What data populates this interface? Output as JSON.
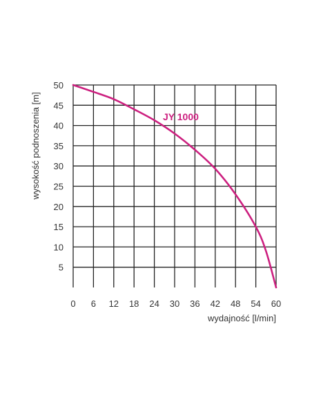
{
  "chart_data": {
    "type": "line",
    "xlabel": "wydajność [l/min]",
    "ylabel": "wysokość podnoszenia [m]",
    "xlim": [
      0,
      60
    ],
    "ylim": [
      0,
      50
    ],
    "x_ticks": [
      0,
      6,
      12,
      18,
      24,
      30,
      36,
      42,
      48,
      54,
      60
    ],
    "y_ticks": [
      5,
      10,
      15,
      20,
      25,
      30,
      35,
      40,
      45,
      50
    ],
    "grid": true,
    "series": [
      {
        "name": "JY 1000",
        "color": "#cc1f7f",
        "x": [
          0,
          6,
          12,
          18,
          24,
          30,
          36,
          42,
          48,
          54,
          57,
          60
        ],
        "y": [
          50,
          48.3,
          46.5,
          44,
          41.3,
          38,
          34,
          29.3,
          23,
          15,
          9,
          0
        ]
      }
    ]
  }
}
